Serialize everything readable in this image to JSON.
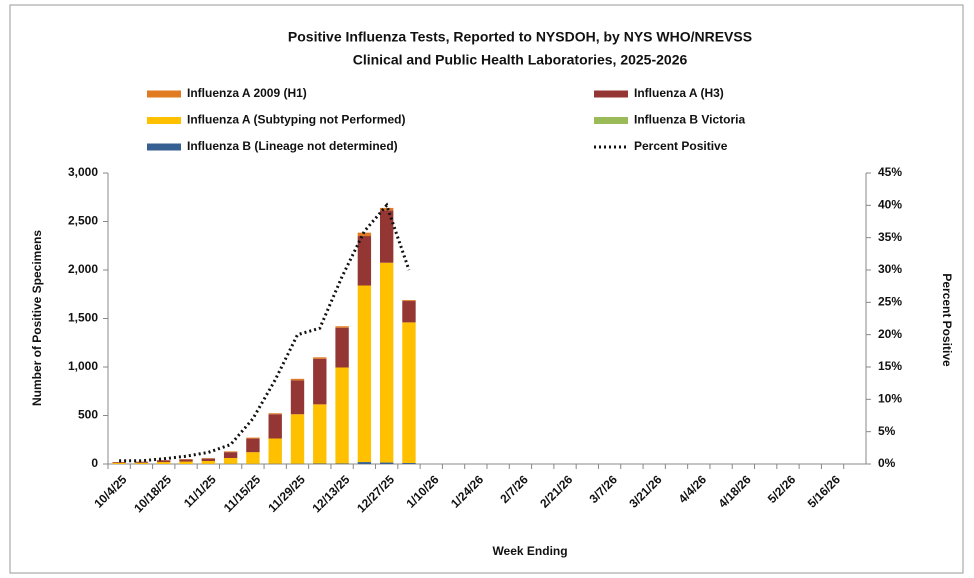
{
  "chart_data": {
    "type": "bar",
    "title_lines": [
      "Positive Influenza Tests, Reported to NYSDOH, by NYS WHO/NREVSS",
      "Clinical and Public Health Laboratories, 2025-2026"
    ],
    "xlabel": "Week Ending",
    "ylabel": "Number of Positive Specimens",
    "y2label": "Percent Positive",
    "stacked": true,
    "categories": [
      "10/4/25",
      null,
      "10/18/25",
      null,
      "11/1/25",
      null,
      "11/15/25",
      null,
      "11/29/25",
      null,
      "12/13/25",
      null,
      "12/27/25",
      null,
      "1/10/26",
      null,
      "1/24/26",
      null,
      "2/7/26",
      null,
      "2/21/26",
      null,
      "3/7/26",
      null,
      "3/21/26",
      null,
      "4/4/26",
      null,
      "4/18/26",
      null,
      "5/2/26",
      null,
      "5/16/26",
      null
    ],
    "series": [
      {
        "name": "Influenza A 2009 (H1)",
        "color": "#e07b22",
        "values": [
          2,
          2,
          2,
          3,
          4,
          8,
          10,
          10,
          15,
          15,
          15,
          35,
          25,
          10,
          null,
          null,
          null,
          null,
          null,
          null,
          null,
          null,
          null,
          null,
          null,
          null,
          null,
          null,
          null,
          null,
          null,
          null,
          null,
          null
        ]
      },
      {
        "name": "Influenza A (H3)",
        "color": "#943634",
        "values": [
          8,
          10,
          18,
          22,
          25,
          60,
          140,
          250,
          350,
          470,
          410,
          510,
          540,
          220,
          null,
          null,
          null,
          null,
          null,
          null,
          null,
          null,
          null,
          null,
          null,
          null,
          null,
          null,
          null,
          null,
          null,
          null,
          null,
          null
        ]
      },
      {
        "name": "Influenza A (Subtyping not Performed)",
        "color": "#ffc000",
        "values": [
          10,
          12,
          20,
          25,
          30,
          60,
          120,
          260,
          510,
          610,
          990,
          1820,
          2060,
          1450,
          null,
          null,
          null,
          null,
          null,
          null,
          null,
          null,
          null,
          null,
          null,
          null,
          null,
          null,
          null,
          null,
          null,
          null,
          null,
          null
        ]
      },
      {
        "name": "Influenza B Victoria",
        "color": "#9bbb59",
        "values": [
          0,
          0,
          0,
          0,
          0,
          0,
          0,
          0,
          0,
          0,
          0,
          0,
          0,
          0,
          null,
          null,
          null,
          null,
          null,
          null,
          null,
          null,
          null,
          null,
          null,
          null,
          null,
          null,
          null,
          null,
          null,
          null,
          null,
          null
        ]
      },
      {
        "name": "Influenza B (Lineage not determined)",
        "color": "#376092",
        "values": [
          0,
          1,
          0,
          0,
          1,
          2,
          2,
          3,
          3,
          5,
          5,
          20,
          15,
          10,
          null,
          null,
          null,
          null,
          null,
          null,
          null,
          null,
          null,
          null,
          null,
          null,
          null,
          null,
          null,
          null,
          null,
          null,
          null,
          null
        ]
      },
      {
        "name": "Percent Positive",
        "color": "#111111",
        "type": "line",
        "axis": "y2",
        "values": [
          0.5,
          0.5,
          0.8,
          1.2,
          1.8,
          3,
          7,
          13,
          20,
          21,
          29,
          36,
          40,
          30,
          null,
          null,
          null,
          null,
          null,
          null,
          null,
          null,
          null,
          null,
          null,
          null,
          null,
          null,
          null,
          null,
          null,
          null,
          null,
          null
        ]
      }
    ],
    "ylim": [
      0,
      3000
    ],
    "yticks": [
      0,
      500,
      {
        "value": 1000,
        "label": "1,000"
      },
      {
        "value": 1500,
        "label": "1,500"
      },
      {
        "value": 2000,
        "label": "2,000"
      },
      {
        "value": 2500,
        "label": "2,500"
      },
      {
        "value": 3000,
        "label": "3,000"
      }
    ],
    "y2lim": [
      0,
      45
    ],
    "y2ticks": [
      {
        "value": 0,
        "label": "0%"
      },
      {
        "value": 5,
        "label": "5%"
      },
      {
        "value": 10,
        "label": "10%"
      },
      {
        "value": 15,
        "label": "15%"
      },
      {
        "value": 20,
        "label": "20%"
      },
      {
        "value": 25,
        "label": "25%"
      },
      {
        "value": 30,
        "label": "30%"
      },
      {
        "value": 35,
        "label": "35%"
      },
      {
        "value": 40,
        "label": "40%"
      },
      {
        "value": 45,
        "label": "45%"
      }
    ],
    "grid": false
  }
}
